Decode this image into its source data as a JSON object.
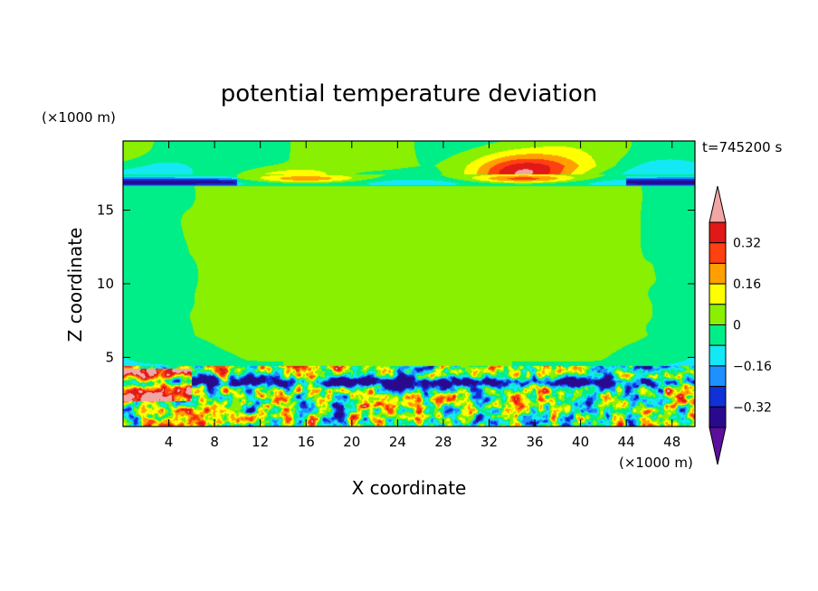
{
  "chart_data": {
    "type": "heatmap",
    "title": "potential temperature deviation",
    "xlabel": "X coordinate",
    "ylabel": "Z coordinate",
    "x_unit": "(×1000 m)",
    "y_unit": "(×1000 m)",
    "time_label": "t=745200 s",
    "xlim": [
      0,
      50
    ],
    "ylim": [
      0.3,
      19.7
    ],
    "x_ticks": [
      4,
      8,
      12,
      16,
      20,
      24,
      28,
      32,
      36,
      40,
      44,
      48
    ],
    "y_ticks": [
      5,
      10,
      15
    ],
    "colorbar": {
      "levels": [
        -0.4,
        -0.32,
        -0.24,
        -0.16,
        -0.08,
        0,
        0.08,
        0.16,
        0.24,
        0.32,
        0.4
      ],
      "labeled_levels": [
        "-0.32",
        "-0.16",
        "0",
        "0.16",
        "0.32"
      ],
      "label_texts": [
        "−0.32",
        "−0.16",
        "0",
        "0.16",
        "0.32"
      ],
      "colors": [
        "#5c0f9c",
        "#2a0a8c",
        "#1030d8",
        "#1e90ff",
        "#15e8f5",
        "#00ee88",
        "#88f000",
        "#ffff00",
        "#ffa000",
        "#ff4010",
        "#e01818",
        "#f2a5a5"
      ]
    },
    "fields": {
      "background_mid_troposphere_value": 0.04,
      "upper_band_value": -0.04,
      "tropopause_negative_value": -0.36,
      "stratosphere_warm_blob_center_x": 35,
      "stratosphere_warm_blob_peak": 0.45,
      "boundary_layer_top_z": 3.8,
      "boundary_layer_min": -0.4,
      "boundary_layer_max": 0.45
    }
  }
}
